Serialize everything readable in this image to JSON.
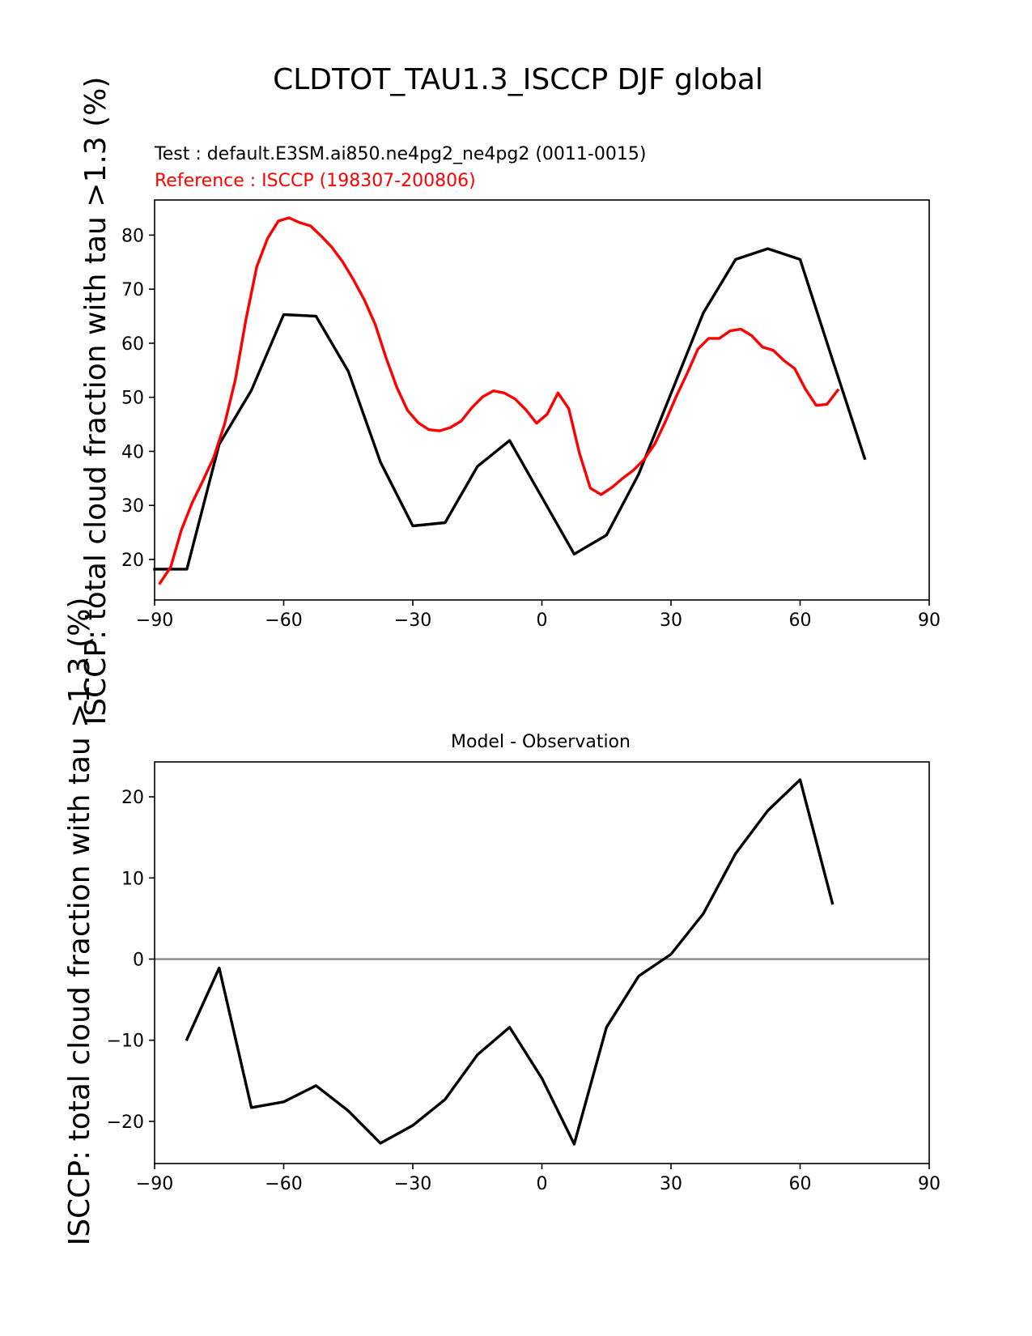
{
  "figure": {
    "suptitle": "CLDTOT_TAU1.3_ISCCP DJF global",
    "ylabel": "ISCCP: total cloud fraction with tau >1.3 (%)"
  },
  "colors": {
    "test": "#000000",
    "reference": "#ff0000",
    "zero_line": "#808080",
    "axes": "#000000"
  },
  "chart_data": [
    {
      "type": "line",
      "test_label": "Test : default.E3SM.ai850.ne4pg2_ne4pg2 (0011-0015)",
      "reference_label": "Reference : ISCCP (198307-200806)",
      "xlim": [
        -90,
        90
      ],
      "ylim": [
        12.5,
        86.5
      ],
      "xticks": [
        -90,
        -60,
        -30,
        0,
        30,
        60,
        90
      ],
      "xtick_labels": [
        "−90",
        "−60",
        "−30",
        "0",
        "30",
        "60",
        "90"
      ],
      "yticks": [
        20,
        30,
        40,
        50,
        60,
        70,
        80
      ],
      "ytick_labels": [
        "20",
        "30",
        "40",
        "50",
        "60",
        "70",
        "80"
      ],
      "series": [
        {
          "name": "Test",
          "color": "#000000",
          "x": [
            -90,
            -82.5,
            -75,
            -67.5,
            -60,
            -52.5,
            -45,
            -37.5,
            -30,
            -22.5,
            -15,
            -7.5,
            0,
            7.5,
            15,
            22.5,
            30,
            37.5,
            45,
            52.5,
            60,
            67.5,
            75
          ],
          "y": [
            18.2,
            18.2,
            41.3,
            51.3,
            65.3,
            65.0,
            54.8,
            38.0,
            26.2,
            26.8,
            37.2,
            42.0,
            31.5,
            21.0,
            24.5,
            35.8,
            50.7,
            65.6,
            75.5,
            77.5,
            75.5,
            57.0,
            38.7
          ]
        },
        {
          "name": "Reference",
          "color": "#ff0000",
          "x": [
            -88.75,
            -86.25,
            -83.75,
            -81.25,
            -78.75,
            -76.25,
            -73.75,
            -71.25,
            -68.75,
            -66.25,
            -63.75,
            -61.25,
            -58.75,
            -56.25,
            -53.75,
            -51.25,
            -48.75,
            -46.25,
            -43.75,
            -41.25,
            -38.75,
            -36.25,
            -33.75,
            -31.25,
            -28.75,
            -26.25,
            -23.75,
            -21.25,
            -18.75,
            -16.25,
            -13.75,
            -11.25,
            -8.75,
            -6.25,
            -3.75,
            -1.25,
            1.25,
            3.75,
            6.25,
            8.75,
            11.25,
            13.75,
            16.25,
            18.75,
            21.25,
            23.75,
            26.25,
            28.75,
            31.25,
            33.75,
            36.25,
            38.75,
            41.25,
            43.75,
            46.25,
            48.75,
            51.25,
            53.75,
            56.25,
            58.75,
            61.25,
            63.75,
            66.25,
            68.75
          ],
          "y": [
            15.6,
            18.6,
            25.5,
            30.5,
            34.6,
            38.9,
            45.0,
            53.2,
            64.5,
            74.2,
            79.4,
            82.6,
            83.2,
            82.3,
            81.7,
            79.8,
            77.7,
            75.0,
            71.7,
            68.0,
            63.5,
            57.4,
            51.9,
            47.6,
            45.3,
            44.0,
            43.8,
            44.4,
            45.6,
            48.1,
            50.1,
            51.2,
            50.8,
            49.7,
            47.7,
            45.2,
            46.9,
            50.8,
            47.9,
            39.6,
            33.2,
            32.0,
            33.3,
            35.0,
            36.5,
            38.5,
            41.4,
            45.6,
            50.2,
            54.4,
            58.9,
            60.9,
            60.9,
            62.3,
            62.6,
            61.4,
            59.3,
            58.7,
            56.8,
            55.3,
            51.5,
            48.5,
            48.7,
            51.3
          ]
        }
      ]
    },
    {
      "type": "line",
      "title": "Model - Observation",
      "xlim": [
        -90,
        90
      ],
      "ylim": [
        -25.2,
        24.3
      ],
      "xticks": [
        -90,
        -60,
        -30,
        0,
        30,
        60,
        90
      ],
      "xtick_labels": [
        "−90",
        "−60",
        "−30",
        "0",
        "30",
        "60",
        "90"
      ],
      "yticks": [
        -20,
        -10,
        0,
        10,
        20
      ],
      "ytick_labels": [
        "−20",
        "−10",
        "0",
        "10",
        "20"
      ],
      "zero_line": 0,
      "series": [
        {
          "name": "Difference",
          "color": "#000000",
          "x": [
            -82.5,
            -75,
            -67.5,
            -60,
            -52.5,
            -45,
            -37.5,
            -30,
            -22.5,
            -15,
            -7.5,
            0,
            7.5,
            15,
            22.5,
            30,
            37.5,
            45,
            52.5,
            60,
            67.5
          ],
          "y": [
            -9.9,
            -1.1,
            -18.3,
            -17.6,
            -15.6,
            -18.7,
            -22.7,
            -20.5,
            -17.3,
            -11.8,
            -8.4,
            -14.7,
            -22.8,
            -8.4,
            -2.1,
            0.6,
            5.6,
            13.0,
            18.3,
            22.1,
            6.9
          ]
        }
      ]
    }
  ]
}
